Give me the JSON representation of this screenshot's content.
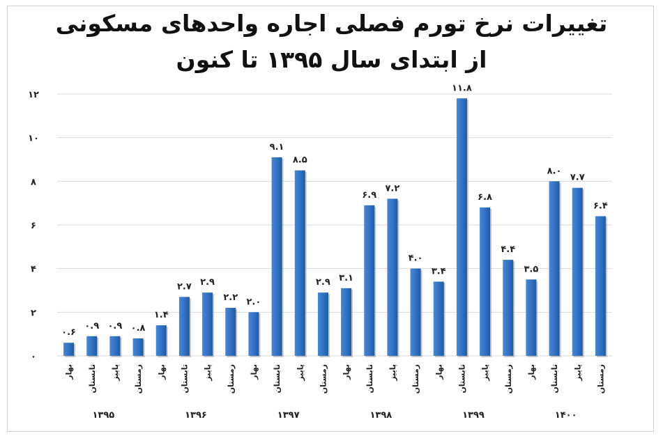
{
  "chart_data": {
    "type": "bar",
    "title_lines": [
      "تغییرات نرخ تورم فصلی اجاره واحدهای مسکونی",
      "از ابتدای سال ۱۳۹۵ تا کنون"
    ],
    "y_ticks": [
      "۰",
      "۲",
      "۴",
      "۶",
      "۸",
      "۱۰",
      "۱۲"
    ],
    "ylim": [
      0,
      12
    ],
    "grid": true,
    "color": "#2e6fc0",
    "categories": [
      "بهار",
      "تابستان",
      "پاییز",
      "زمستان",
      "بهار",
      "تابستان",
      "پاییز",
      "زمستان",
      "بهار",
      "تابستان",
      "پاییز",
      "زمستان",
      "بهار",
      "تابستان",
      "پاییز",
      "زمستان",
      "بهار",
      "تابستان",
      "پاییز",
      "زمستان",
      "بهار",
      "تابستان",
      "پاییز",
      "زمستان"
    ],
    "values": [
      0.6,
      0.9,
      0.9,
      0.8,
      1.4,
      2.7,
      2.9,
      2.2,
      2.0,
      9.1,
      8.5,
      2.9,
      3.1,
      6.9,
      7.2,
      4.0,
      3.4,
      11.8,
      6.8,
      4.4,
      3.5,
      8.0,
      7.7,
      6.4
    ],
    "value_labels": [
      "۰.۶",
      "۰.۹",
      "۰.۹",
      "۰.۸",
      "۱.۴",
      "۲.۷",
      "۲.۹",
      "۲.۲",
      "۲.۰",
      "۹.۱",
      "۸.۵",
      "۲.۹",
      "۳.۱",
      "۶.۹",
      "۷.۲",
      "۴.۰",
      "۳.۴",
      "۱۱.۸",
      "۶.۸",
      "۴.۴",
      "۳.۵",
      "۸.۰",
      "۷.۷",
      "۶.۴"
    ],
    "year_groups": [
      {
        "label": "۱۳۹۵",
        "start": 0,
        "count": 4
      },
      {
        "label": "۱۳۹۶",
        "start": 4,
        "count": 4
      },
      {
        "label": "۱۳۹۷",
        "start": 8,
        "count": 4
      },
      {
        "label": "۱۳۹۸",
        "start": 12,
        "count": 4
      },
      {
        "label": "۱۳۹۹",
        "start": 16,
        "count": 4
      },
      {
        "label": "۱۴۰۰",
        "start": 20,
        "count": 4
      }
    ]
  }
}
